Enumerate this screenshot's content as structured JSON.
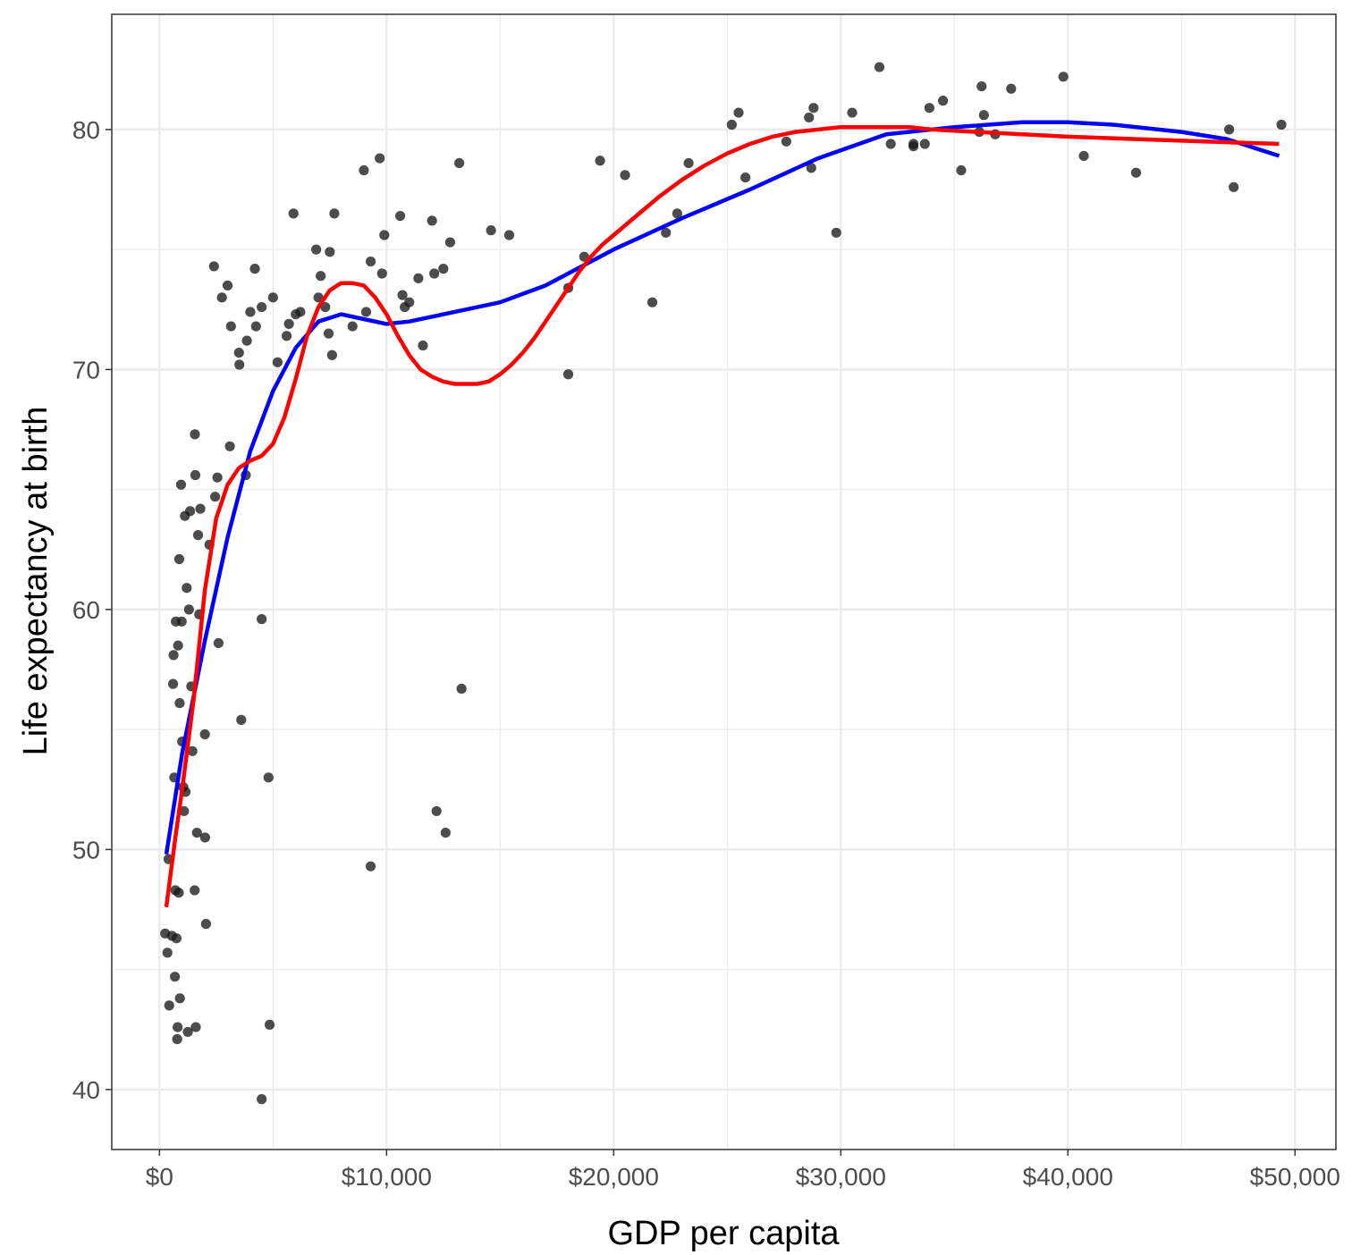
{
  "chart_data": {
    "type": "scatter",
    "xlabel": "GDP per capita",
    "ylabel": "Life expectancy at birth",
    "xlim": [
      -2100,
      51800
    ],
    "ylim": [
      37.5,
      84.8
    ],
    "x_ticks": [
      0,
      10000,
      20000,
      30000,
      40000,
      50000
    ],
    "x_tick_labels": [
      "$0",
      "$10,000",
      "$20,000",
      "$30,000",
      "$40,000",
      "$50,000"
    ],
    "y_ticks": [
      40,
      50,
      60,
      70,
      80
    ],
    "y_tick_labels": [
      "40",
      "50",
      "60",
      "70",
      "80"
    ],
    "grid": true,
    "colors": {
      "points": "#1a1a1a",
      "series_blue": "#0000ff",
      "series_red": "#ff0000",
      "grid": "#ebebeb",
      "border": "#333333"
    },
    "points": [
      [
        250,
        46.5
      ],
      [
        350,
        45.7
      ],
      [
        400,
        49.6
      ],
      [
        430,
        43.5
      ],
      [
        550,
        46.4
      ],
      [
        600,
        56.9
      ],
      [
        620,
        58.1
      ],
      [
        650,
        53.0
      ],
      [
        680,
        44.7
      ],
      [
        700,
        48.3
      ],
      [
        720,
        59.5
      ],
      [
        750,
        46.3
      ],
      [
        780,
        42.1
      ],
      [
        800,
        42.6
      ],
      [
        820,
        58.5
      ],
      [
        850,
        48.2
      ],
      [
        870,
        62.1
      ],
      [
        890,
        56.1
      ],
      [
        900,
        43.8
      ],
      [
        950,
        65.2
      ],
      [
        980,
        59.5
      ],
      [
        1000,
        54.5
      ],
      [
        1050,
        52.6
      ],
      [
        1080,
        51.6
      ],
      [
        1120,
        63.9
      ],
      [
        1150,
        52.4
      ],
      [
        1200,
        60.9
      ],
      [
        1250,
        42.4
      ],
      [
        1300,
        60.0
      ],
      [
        1350,
        64.1
      ],
      [
        1400,
        56.8
      ],
      [
        1450,
        54.1
      ],
      [
        1550,
        48.3
      ],
      [
        1560,
        67.3
      ],
      [
        1580,
        65.6
      ],
      [
        1600,
        42.6
      ],
      [
        1650,
        50.7
      ],
      [
        1700,
        63.1
      ],
      [
        1750,
        59.8
      ],
      [
        1800,
        64.2
      ],
      [
        2000,
        54.8
      ],
      [
        2010,
        50.5
      ],
      [
        2050,
        46.9
      ],
      [
        2200,
        62.7
      ],
      [
        2400,
        74.3
      ],
      [
        2450,
        64.7
      ],
      [
        2550,
        65.5
      ],
      [
        2600,
        58.6
      ],
      [
        2750,
        73.0
      ],
      [
        3000,
        73.5
      ],
      [
        3100,
        66.8
      ],
      [
        3150,
        71.8
      ],
      [
        3500,
        70.7
      ],
      [
        3520,
        70.2
      ],
      [
        3600,
        55.4
      ],
      [
        3800,
        65.6
      ],
      [
        3850,
        71.2
      ],
      [
        4000,
        72.4
      ],
      [
        4200,
        74.2
      ],
      [
        4250,
        71.8
      ],
      [
        4500,
        59.6
      ],
      [
        4500,
        72.6
      ],
      [
        4500,
        39.6
      ],
      [
        4800,
        53.0
      ],
      [
        4850,
        42.7
      ],
      [
        5000,
        73.0
      ],
      [
        5200,
        70.3
      ],
      [
        5600,
        71.4
      ],
      [
        5700,
        71.9
      ],
      [
        5900,
        76.5
      ],
      [
        6000,
        72.3
      ],
      [
        6200,
        72.4
      ],
      [
        6900,
        75.0
      ],
      [
        7000,
        73.0
      ],
      [
        7100,
        73.9
      ],
      [
        7300,
        72.6
      ],
      [
        7450,
        71.5
      ],
      [
        7500,
        74.9
      ],
      [
        7600,
        70.6
      ],
      [
        7700,
        76.5
      ],
      [
        8500,
        71.8
      ],
      [
        9000,
        78.3
      ],
      [
        9100,
        72.4
      ],
      [
        9300,
        74.5
      ],
      [
        9300,
        49.3
      ],
      [
        9700,
        78.8
      ],
      [
        9800,
        74.0
      ],
      [
        9900,
        75.6
      ],
      [
        10600,
        76.4
      ],
      [
        10700,
        73.1
      ],
      [
        10800,
        72.6
      ],
      [
        11000,
        72.8
      ],
      [
        11400,
        73.8
      ],
      [
        11600,
        71.0
      ],
      [
        12000,
        76.2
      ],
      [
        12100,
        74.0
      ],
      [
        12200,
        51.6
      ],
      [
        12500,
        74.2
      ],
      [
        12600,
        50.7
      ],
      [
        12800,
        75.3
      ],
      [
        13200,
        78.6
      ],
      [
        13300,
        56.7
      ],
      [
        14600,
        75.8
      ],
      [
        15400,
        75.6
      ],
      [
        18000,
        73.4
      ],
      [
        18000,
        69.8
      ],
      [
        18700,
        74.7
      ],
      [
        19400,
        78.7
      ],
      [
        20500,
        78.1
      ],
      [
        21700,
        72.8
      ],
      [
        22300,
        75.7
      ],
      [
        22800,
        76.5
      ],
      [
        23300,
        78.6
      ],
      [
        25200,
        80.2
      ],
      [
        25500,
        80.7
      ],
      [
        25800,
        78.0
      ],
      [
        27600,
        79.5
      ],
      [
        28600,
        80.5
      ],
      [
        28700,
        78.4
      ],
      [
        28800,
        80.9
      ],
      [
        29800,
        75.7
      ],
      [
        30500,
        80.7
      ],
      [
        31700,
        82.6
      ],
      [
        32200,
        79.4
      ],
      [
        33200,
        79.4
      ],
      [
        33200,
        79.3
      ],
      [
        33700,
        79.4
      ],
      [
        33900,
        80.9
      ],
      [
        34500,
        81.2
      ],
      [
        35300,
        78.3
      ],
      [
        36100,
        79.9
      ],
      [
        36200,
        81.8
      ],
      [
        36300,
        80.6
      ],
      [
        36800,
        79.8
      ],
      [
        37500,
        81.7
      ],
      [
        39800,
        82.2
      ],
      [
        40700,
        78.9
      ],
      [
        43000,
        78.2
      ],
      [
        47100,
        80.0
      ],
      [
        47300,
        77.6
      ],
      [
        49400,
        80.2
      ]
    ],
    "series": [
      {
        "color": "#0000ff",
        "x": [
          300,
          1000,
          2000,
          3000,
          4000,
          5000,
          6000,
          7000,
          8000,
          9000,
          10000,
          11000,
          12000,
          13000,
          15000,
          17000,
          20000,
          23000,
          26000,
          29000,
          32000,
          35000,
          38000,
          40000,
          42000,
          45000,
          47000,
          49300
        ],
        "values": [
          49.8,
          54.0,
          58.7,
          63.0,
          66.6,
          69.1,
          70.9,
          72.0,
          72.3,
          72.1,
          71.9,
          72.0,
          72.2,
          72.4,
          72.8,
          73.5,
          75.0,
          76.3,
          77.5,
          78.8,
          79.8,
          80.1,
          80.3,
          80.3,
          80.2,
          79.9,
          79.6,
          78.9
        ]
      },
      {
        "color": "#ff0000",
        "x": [
          300,
          700,
          1000,
          1500,
          2000,
          2500,
          3000,
          3500,
          4000,
          4500,
          5000,
          5500,
          6000,
          6500,
          7000,
          7500,
          8000,
          8500,
          9000,
          9500,
          10000,
          10500,
          11000,
          11500,
          12000,
          12500,
          13000,
          13500,
          14000,
          14500,
          15000,
          15500,
          16000,
          16500,
          17000,
          17500,
          18000,
          18500,
          19000,
          19500,
          20000,
          21000,
          22000,
          23000,
          24000,
          25000,
          26000,
          27000,
          28000,
          29000,
          30000,
          31000,
          32000,
          33000,
          34000,
          36000,
          38000,
          40000,
          43000,
          46000,
          49300
        ],
        "values": [
          47.6,
          50.5,
          52.5,
          56.2,
          60.8,
          63.8,
          65.2,
          65.9,
          66.2,
          66.4,
          66.9,
          68.0,
          69.6,
          71.4,
          72.6,
          73.3,
          73.6,
          73.6,
          73.5,
          73.0,
          72.3,
          71.4,
          70.6,
          70.0,
          69.7,
          69.5,
          69.4,
          69.4,
          69.4,
          69.5,
          69.8,
          70.2,
          70.7,
          71.3,
          72.0,
          72.7,
          73.4,
          74.1,
          74.7,
          75.2,
          75.6,
          76.4,
          77.2,
          77.9,
          78.5,
          79.0,
          79.4,
          79.7,
          79.9,
          80.0,
          80.1,
          80.1,
          80.1,
          80.1,
          80.0,
          79.9,
          79.8,
          79.7,
          79.6,
          79.5,
          79.4
        ]
      }
    ]
  }
}
